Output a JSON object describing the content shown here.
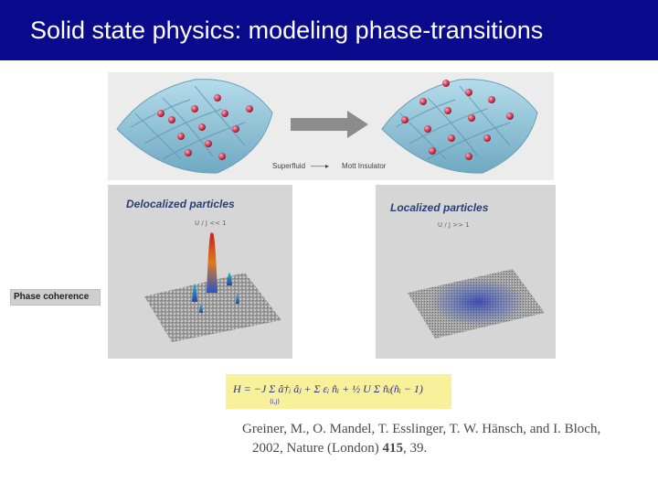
{
  "slide": {
    "title": "Solid state physics: modeling phase-transitions"
  },
  "top_panel": {
    "caption_left": "Superfluid",
    "caption_right": "Mott Insulator"
  },
  "left_panel": {
    "title": "Delocalized particles",
    "subtitle": "U / J << 1"
  },
  "right_panel": {
    "title": "Localized particles",
    "subtitle": "U / J >> 1"
  },
  "side_label": "Phase coherence",
  "formula": {
    "text": "H = −J Σ â†ᵢ âⱼ + Σ εᵢ n̂ᵢ + ½ U Σ n̂ᵢ(n̂ᵢ − 1)",
    "sub": "⟨i,j⟩"
  },
  "citation": {
    "authors": "Greiner, M., O. Mandel, T. Esslinger, T. W. Hänsch, and I. Bloch,",
    "year_journal": "2002, Nature (London)",
    "volume": "415",
    "page": ", 39."
  },
  "colors": {
    "title_bar": "#0a0a8c",
    "lattice": "#8fc6dc",
    "atom": "#d0405a",
    "formula_bg": "#f8f09a"
  }
}
